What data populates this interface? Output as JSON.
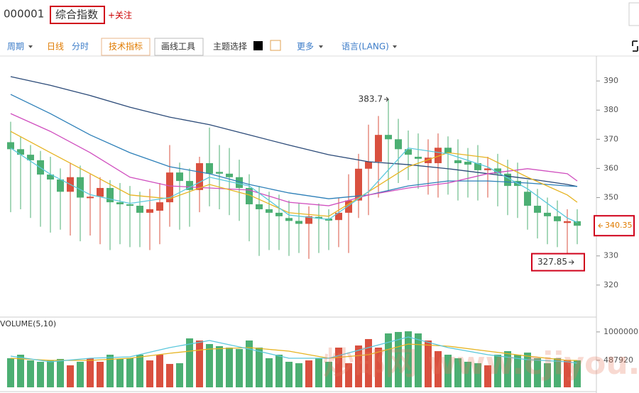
{
  "header": {
    "code": "000001",
    "name": "综合指数",
    "follow": "+关注"
  },
  "toolbar": {
    "period": "周期",
    "daily": "日线",
    "intraday": "分时",
    "indicators": "技术指标",
    "drawing": "画线工具",
    "theme": "主题选择",
    "more": "更多",
    "language": "语言(LANG)"
  },
  "watermark": "炒邮网 www.cjiyou.net",
  "chart_data": [
    {
      "type": "candlestick",
      "up_color": "#d9503f",
      "down_color": "#4caf73",
      "open": [
        369,
        366.6,
        364.7,
        362.8,
        357.9,
        356.2,
        352,
        357,
        349.8,
        350.3,
        353.3,
        348.4,
        347.7,
        347.2,
        344.8,
        345.5,
        348.4,
        358.6,
        355.7,
        352.6,
        361.8,
        358.8,
        358.2,
        357,
        353.3,
        347.7,
        346,
        344.8,
        343,
        342,
        341,
        343.4,
        342.8,
        342.3,
        344.8,
        349,
        359.9,
        362.3,
        371.5,
        370,
        366.6,
        364,
        361.8,
        361.8,
        367.1,
        362.8,
        362.3,
        361.8,
        359.4,
        360,
        358.2,
        355.7,
        352,
        347.2,
        344.8,
        343.6,
        341.3,
        341.9
      ],
      "high": [
        376,
        371,
        368,
        366,
        364,
        360,
        362,
        361,
        358,
        357,
        356,
        355,
        354,
        352,
        353,
        355,
        368,
        362,
        360,
        364,
        374,
        368,
        367,
        363,
        358,
        354,
        352,
        351,
        349,
        348,
        347,
        348,
        346,
        350,
        358,
        365,
        375,
        378,
        383.7,
        377,
        373,
        372,
        370,
        372,
        371,
        370,
        367,
        368,
        364,
        365,
        363,
        362,
        356,
        353,
        350,
        349,
        346,
        346
      ],
      "low": [
        345,
        346,
        343,
        340,
        338,
        339,
        337,
        335,
        337,
        334,
        332,
        334,
        333,
        333,
        332,
        334,
        340,
        339,
        340,
        345,
        347,
        346,
        344,
        342,
        335,
        330,
        332,
        332,
        330,
        331,
        329,
        331,
        332,
        333,
        331,
        343,
        344,
        350,
        352,
        355,
        356,
        353,
        351,
        350,
        351,
        349,
        350,
        349,
        350,
        347,
        344,
        343,
        339,
        336,
        334,
        333,
        327.85,
        334
      ],
      "close": [
        366.6,
        364.7,
        362.8,
        357.9,
        356.2,
        352,
        357,
        350,
        350.3,
        353.3,
        348.4,
        347.7,
        347.2,
        344.8,
        346,
        348.4,
        358.6,
        355.7,
        352.6,
        361.8,
        358.2,
        358.2,
        357,
        353.3,
        347.7,
        346,
        344.8,
        343.6,
        342,
        341,
        343.6,
        342.8,
        342.1,
        344.8,
        349,
        359.9,
        362.3,
        371.5,
        370,
        366.6,
        364.7,
        363.3,
        363.7,
        367.1,
        365.2,
        361.8,
        361.3,
        359.4,
        360,
        358.2,
        354,
        354,
        347.2,
        344.8,
        343.6,
        341.9,
        341.9,
        340.35
      ],
      "ylim": [
        309.5,
        398.3
      ],
      "yticks": [
        320,
        330,
        340,
        350,
        360,
        370,
        380,
        390
      ],
      "ma_x": [
        0,
        4,
        8,
        12,
        16,
        20,
        24,
        28,
        32,
        36,
        40,
        44,
        48,
        52,
        56,
        57
      ],
      "ma_lines": [
        {
          "color": "#2b4a78",
          "values": [
            391.5,
            388.5,
            385,
            381,
            377.6,
            375,
            371.5,
            368,
            364.7,
            362.3,
            361.3,
            359.9,
            358.2,
            356.5,
            354.5,
            353.8
          ]
        },
        {
          "color": "#2c7fb8",
          "values": [
            385.4,
            378.8,
            371.5,
            365.4,
            360.6,
            358.2,
            354.5,
            351.6,
            349.6,
            350.9,
            354,
            355.7,
            355.7,
            355,
            354,
            353.8
          ]
        },
        {
          "color": "#d04fbf",
          "values": [
            378.8,
            372.7,
            365.4,
            357,
            354,
            353.3,
            352.6,
            348.4,
            347.2,
            350.9,
            353.3,
            355,
            358.2,
            359.9,
            358.2,
            355.7
          ]
        },
        {
          "color": "#e6b422",
          "values": [
            372.7,
            365.4,
            358.2,
            350.9,
            349.6,
            354.5,
            350.9,
            344.8,
            343.6,
            352,
            360.6,
            365.4,
            363.7,
            357,
            350.9,
            348.4
          ]
        },
        {
          "color": "#5bc8dc",
          "values": [
            367,
            358,
            351,
            348,
            350,
            357,
            354,
            344,
            342.5,
            352,
            367,
            365,
            360.5,
            353,
            343,
            341.5
          ]
        }
      ],
      "annotations": {
        "high_label": 383.7,
        "low_label": 327.85,
        "last_price": 340.35
      }
    },
    {
      "type": "bar",
      "title": "VOLUME(5,10)",
      "values": [
        525000,
        589000,
        486000,
        461000,
        486000,
        512000,
        397000,
        461000,
        525000,
        461000,
        589000,
        512000,
        525000,
        589000,
        486000,
        589000,
        422000,
        435000,
        883000,
        845000,
        781000,
        743000,
        717000,
        691000,
        845000,
        717000,
        525000,
        589000,
        461000,
        435000,
        486000,
        525000,
        461000,
        717000,
        435000,
        755000,
        871000,
        717000,
        973000,
        999000,
        1011000,
        973000,
        845000,
        653000,
        589000,
        525000,
        461000,
        435000,
        397000,
        589000,
        653000,
        589000,
        627000,
        525000,
        435000,
        525000,
        486000,
        486000
      ],
      "ylim": [
        0,
        1229000
      ],
      "yticks": [
        487920,
        1000000
      ],
      "ma_x": [
        0,
        4,
        8,
        12,
        16,
        20,
        24,
        28,
        32,
        36,
        40,
        44,
        48,
        52,
        56,
        57
      ],
      "ma_lines": [
        {
          "color": "#e6b422",
          "values": [
            525000,
            486000,
            486000,
            525000,
            614000,
            691000,
            717000,
            653000,
            525000,
            589000,
            781000,
            743000,
            653000,
            563000,
            486000,
            486000
          ]
        },
        {
          "color": "#5bc8dc",
          "values": [
            563000,
            461000,
            525000,
            550000,
            717000,
            845000,
            691000,
            525000,
            525000,
            717000,
            909000,
            717000,
            589000,
            499000,
            461000,
            435000
          ]
        }
      ]
    }
  ]
}
